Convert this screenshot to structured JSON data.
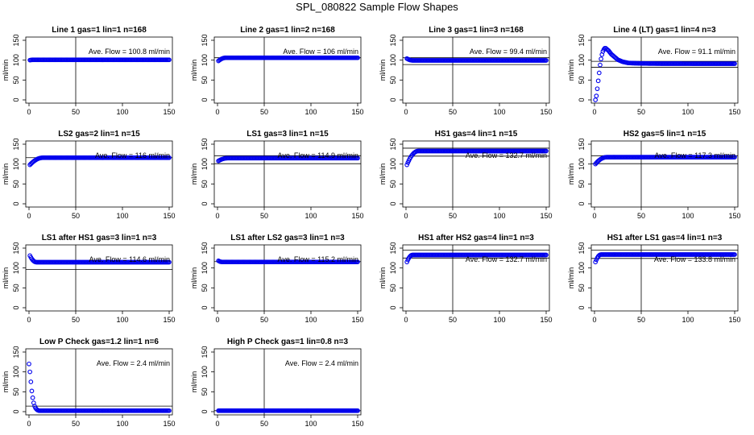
{
  "figure": {
    "title": "SPL_080822  Sample Flow Shapes",
    "ylabel": "ml/min",
    "flow_prefix": "Ave. Flow = ",
    "flow_unit": "ml/min"
  },
  "colors": {
    "points": "#0000ee",
    "axes": "#000000",
    "background": "#ffffff"
  },
  "chart_data": [
    {
      "type": "scatter",
      "title": "Line 1 gas=1 lin=1 n=168",
      "ylabel": "ml/min",
      "xlim": [
        0,
        150
      ],
      "ylim": [
        0,
        150
      ],
      "xticks": [
        0,
        50,
        100,
        150
      ],
      "yticks": [
        0,
        50,
        100,
        150
      ],
      "vline": 50,
      "hlines": [],
      "ave_flow": "100.8",
      "profile": {
        "steady": 100.8,
        "start": 100,
        "settle": 3
      }
    },
    {
      "type": "scatter",
      "title": "Line 2 gas=1 lin=2 n=168",
      "ylabel": "ml/min",
      "xlim": [
        0,
        150
      ],
      "ylim": [
        0,
        150
      ],
      "xticks": [
        0,
        50,
        100,
        150
      ],
      "yticks": [
        0,
        50,
        100,
        150
      ],
      "vline": 50,
      "hlines": [
        106
      ],
      "ave_flow": "106",
      "profile": {
        "steady": 106,
        "start": 98,
        "settle": 8
      }
    },
    {
      "type": "scatter",
      "title": "Line 3 gas=1 lin=3 n=168",
      "ylabel": "ml/min",
      "xlim": [
        0,
        150
      ],
      "ylim": [
        0,
        150
      ],
      "xticks": [
        0,
        50,
        100,
        150
      ],
      "yticks": [
        0,
        50,
        100,
        150
      ],
      "vline": 50,
      "hlines": [
        106,
        89
      ],
      "ave_flow": "99.4",
      "profile": {
        "steady": 99.4,
        "start": 104,
        "settle": 6
      }
    },
    {
      "type": "scatter",
      "title": "Line 4 (LT) gas=1 lin=4 n=3",
      "ylabel": "ml/min",
      "xlim": [
        0,
        150
      ],
      "ylim": [
        0,
        150
      ],
      "xticks": [
        0,
        50,
        100,
        150
      ],
      "yticks": [
        0,
        50,
        100,
        150
      ],
      "vline": 50,
      "hlines": [
        97,
        82
      ],
      "ave_flow": "91.1",
      "profile": {
        "steady": 91.1,
        "overshoot": true
      }
    },
    {
      "type": "scatter",
      "title": "LS2 gas=2 lin=1 n=15",
      "ylabel": "ml/min",
      "xlim": [
        0,
        150
      ],
      "ylim": [
        0,
        150
      ],
      "xticks": [
        0,
        50,
        100,
        150
      ],
      "yticks": [
        0,
        50,
        100,
        150
      ],
      "vline": 50,
      "hlines": [
        116
      ],
      "ave_flow": "116",
      "profile": {
        "steady": 116,
        "start": 98,
        "settle": 14
      }
    },
    {
      "type": "scatter",
      "title": "LS1 gas=3 lin=1 n=15",
      "ylabel": "ml/min",
      "xlim": [
        0,
        150
      ],
      "ylim": [
        0,
        150
      ],
      "xticks": [
        0,
        50,
        100,
        150
      ],
      "yticks": [
        0,
        50,
        100,
        150
      ],
      "vline": 50,
      "hlines": [
        121,
        101
      ],
      "ave_flow": "114.9",
      "profile": {
        "steady": 114.9,
        "start": 108,
        "settle": 10
      }
    },
    {
      "type": "scatter",
      "title": "HS1 gas=4 lin=1 n=15",
      "ylabel": "ml/min",
      "xlim": [
        0,
        150
      ],
      "ylim": [
        0,
        150
      ],
      "xticks": [
        0,
        50,
        100,
        150
      ],
      "yticks": [
        0,
        50,
        100,
        150
      ],
      "vline": 50,
      "hlines": [
        140,
        120
      ],
      "ave_flow": "132.7",
      "profile": {
        "steady": 132.7,
        "start": 98,
        "settle": 12
      }
    },
    {
      "type": "scatter",
      "title": "HS2 gas=5 lin=1 n=15",
      "ylabel": "ml/min",
      "xlim": [
        0,
        150
      ],
      "ylim": [
        0,
        150
      ],
      "xticks": [
        0,
        50,
        100,
        150
      ],
      "yticks": [
        0,
        50,
        100,
        150
      ],
      "vline": 50,
      "hlines": [
        121,
        101
      ],
      "ave_flow": "117.3",
      "profile": {
        "steady": 117.3,
        "start": 100,
        "settle": 12
      }
    },
    {
      "type": "scatter",
      "title": "LS1 after HS1 gas=3 lin=1 n=3",
      "ylabel": "ml/min",
      "xlim": [
        0,
        150
      ],
      "ylim": [
        0,
        150
      ],
      "xticks": [
        0,
        50,
        100,
        150
      ],
      "yticks": [
        0,
        50,
        100,
        150
      ],
      "vline": 50,
      "hlines": [
        96
      ],
      "ave_flow": "114.6",
      "profile": {
        "steady": 114.6,
        "start": 131,
        "settle": 7
      }
    },
    {
      "type": "scatter",
      "title": "LS1 after LS2 gas=3 lin=1 n=3",
      "ylabel": "ml/min",
      "xlim": [
        0,
        150
      ],
      "ylim": [
        0,
        150
      ],
      "xticks": [
        0,
        50,
        100,
        150
      ],
      "yticks": [
        0,
        50,
        100,
        150
      ],
      "vline": 50,
      "hlines": [
        116
      ],
      "ave_flow": "115.2",
      "profile": {
        "steady": 115.2,
        "start": 118,
        "settle": 4
      }
    },
    {
      "type": "scatter",
      "title": "HS1 after HS2 gas=4 lin=1 n=3",
      "ylabel": "ml/min",
      "xlim": [
        0,
        150
      ],
      "ylim": [
        0,
        150
      ],
      "xticks": [
        0,
        50,
        100,
        150
      ],
      "yticks": [
        0,
        50,
        100,
        150
      ],
      "vline": 50,
      "hlines": [
        145,
        125
      ],
      "ave_flow": "132.7",
      "profile": {
        "steady": 132.7,
        "start": 115,
        "settle": 6
      }
    },
    {
      "type": "scatter",
      "title": "HS1 after LS1 gas=4 lin=1 n=3",
      "ylabel": "ml/min",
      "xlim": [
        0,
        150
      ],
      "ylim": [
        0,
        150
      ],
      "xticks": [
        0,
        50,
        100,
        150
      ],
      "yticks": [
        0,
        50,
        100,
        150
      ],
      "vline": 50,
      "hlines": [
        145,
        124
      ],
      "ave_flow": "133.8",
      "profile": {
        "steady": 133.8,
        "start": 115,
        "settle": 6
      }
    },
    {
      "type": "scatter",
      "title": "Low P Check gas=1.2 lin=1 n=6",
      "ylabel": "ml/min",
      "xlim": [
        0,
        150
      ],
      "ylim": [
        0,
        150
      ],
      "xticks": [
        0,
        50,
        100,
        150
      ],
      "yticks": [
        0,
        50,
        100,
        150
      ],
      "vline": 50,
      "hlines": [
        14
      ],
      "ave_flow": "2.4",
      "profile": {
        "steady": 2.4,
        "decay": [
          120,
          100,
          75,
          52,
          35,
          22,
          14,
          9,
          6,
          4,
          3
        ]
      }
    },
    {
      "type": "scatter",
      "title": "High P Check gas=1 lin=0.8 n=3",
      "ylabel": "ml/min",
      "xlim": [
        0,
        150
      ],
      "ylim": [
        0,
        150
      ],
      "xticks": [
        0,
        50,
        100,
        150
      ],
      "yticks": [
        0,
        50,
        100,
        150
      ],
      "vline": 50,
      "hlines": [
        2.4
      ],
      "ave_flow": "2.4",
      "profile": {
        "steady": 2.4,
        "start": 2.4,
        "settle": 1
      }
    }
  ]
}
